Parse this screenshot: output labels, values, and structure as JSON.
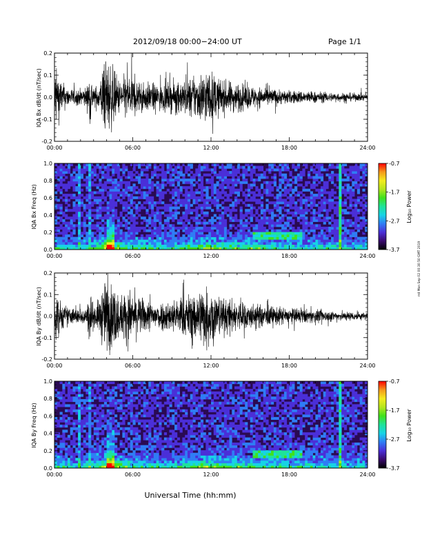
{
  "header": {
    "date_range": "2012/09/18  00:00−24:00 UT",
    "page": "Page 1/1"
  },
  "xaxis": {
    "title": "Universal Time (hh:mm)",
    "ticks": [
      "00:00",
      "06:00",
      "12:00",
      "18:00",
      "24:00"
    ]
  },
  "stamp": "rrd Mon Sep 02 00:30:50 GMT 2019",
  "colorbar": {
    "title": "Log₁₀ Power",
    "ticks": [
      "-0.7",
      "-1.7",
      "-2.7",
      "-3.7"
    ],
    "colors": [
      "#000000",
      "#3a0a6e",
      "#4b2fd8",
      "#2f7df5",
      "#17d3e6",
      "#1fe39a",
      "#3fe21c",
      "#b5e61c",
      "#f4ec1d",
      "#f59a1b",
      "#ff0000"
    ]
  },
  "chart_data": [
    {
      "type": "line",
      "panel": "IQA Bx dB/dt",
      "ylabel": "IQA Bx dB/dt (nT/sec)",
      "xlim": [
        0,
        24
      ],
      "ylim": [
        -0.2,
        0.2
      ],
      "yticks": [
        "0.2",
        "0.1",
        "0.0",
        "-0.1",
        "-0.2"
      ],
      "envelope": {
        "x_hours": [
          0.0,
          0.3,
          0.6,
          1.0,
          1.5,
          2.0,
          2.5,
          2.75,
          3.0,
          3.5,
          3.75,
          4.0,
          4.25,
          4.5,
          5.0,
          5.5,
          6.0,
          6.5,
          7.0,
          8.0,
          9.0,
          10.0,
          11.0,
          11.5,
          12.0,
          12.5,
          13.0,
          14.0,
          15.0,
          16.0,
          17.0,
          18.0,
          19.0,
          20.0,
          21.0,
          22.0,
          23.0,
          24.0
        ],
        "amplitude": [
          0.2,
          0.15,
          0.09,
          0.06,
          0.05,
          0.05,
          0.07,
          0.18,
          0.05,
          0.1,
          0.22,
          0.22,
          0.22,
          0.18,
          0.1,
          0.14,
          0.13,
          0.1,
          0.09,
          0.08,
          0.09,
          0.11,
          0.14,
          0.17,
          0.16,
          0.12,
          0.1,
          0.09,
          0.07,
          0.06,
          0.05,
          0.04,
          0.04,
          0.035,
          0.03,
          0.028,
          0.025,
          0.022
        ]
      }
    },
    {
      "type": "heatmap",
      "panel": "IQA Bx Freq",
      "ylabel": "IQA Bx Freq (Hz)",
      "xlim": [
        0,
        24
      ],
      "ylim": [
        0,
        1.0
      ],
      "yticks": [
        "1.0",
        "0.8",
        "0.6",
        "0.4",
        "0.2",
        "0.0"
      ],
      "zlim": [
        -3.7,
        -0.7
      ]
    },
    {
      "type": "line",
      "panel": "IQA By dB/dt",
      "ylabel": "IQA By dB/dt (nT/sec)",
      "xlim": [
        0,
        24
      ],
      "ylim": [
        -0.2,
        0.2
      ],
      "yticks": [
        "0.2",
        "0.1",
        "0.0",
        "-0.1",
        "-0.2"
      ],
      "envelope": {
        "x_hours": [
          0.0,
          0.3,
          0.6,
          1.0,
          1.5,
          2.0,
          2.5,
          2.75,
          3.0,
          3.5,
          3.75,
          4.0,
          4.25,
          4.5,
          5.0,
          5.5,
          6.0,
          6.5,
          7.0,
          8.0,
          9.0,
          10.0,
          11.0,
          11.5,
          12.0,
          12.5,
          13.0,
          14.0,
          15.0,
          16.0,
          17.0,
          18.0,
          19.0,
          20.0,
          21.0,
          22.0,
          23.0,
          24.0
        ],
        "amplitude": [
          0.18,
          0.12,
          0.08,
          0.06,
          0.05,
          0.05,
          0.06,
          0.18,
          0.06,
          0.12,
          0.22,
          0.22,
          0.22,
          0.2,
          0.13,
          0.17,
          0.15,
          0.12,
          0.1,
          0.09,
          0.1,
          0.13,
          0.16,
          0.2,
          0.18,
          0.14,
          0.11,
          0.1,
          0.08,
          0.07,
          0.06,
          0.05,
          0.045,
          0.04,
          0.035,
          0.03,
          0.027,
          0.024
        ]
      }
    },
    {
      "type": "heatmap",
      "panel": "IQA By Freq",
      "ylabel": "IQA By Freq (Hz)",
      "xlim": [
        0,
        24
      ],
      "ylim": [
        0,
        1.0
      ],
      "yticks": [
        "1.0",
        "0.8",
        "0.6",
        "0.4",
        "0.2",
        "0.0"
      ],
      "zlim": [
        -3.7,
        -0.7
      ]
    }
  ]
}
